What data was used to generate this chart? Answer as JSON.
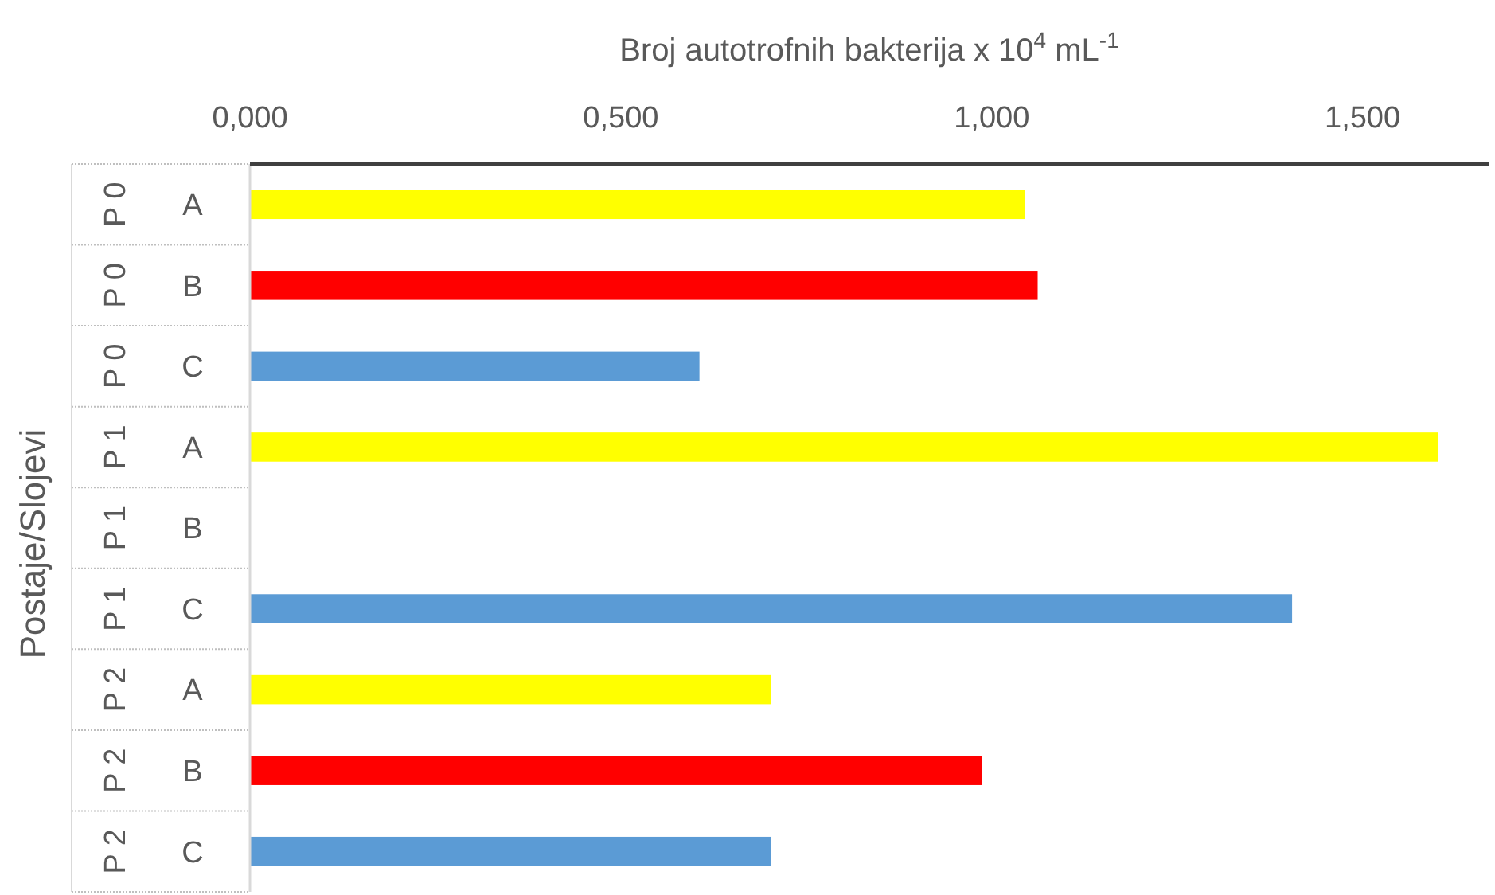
{
  "chart_data": {
    "type": "bar",
    "orientation": "horizontal",
    "xlabel": "Broj autotrofnih bakterija x 10$^{4}$ mL$^{-1}$",
    "ylabel": "Postaje/Slojevi",
    "categories": [
      "A",
      "B",
      "C",
      "A",
      "B",
      "C",
      "A",
      "B",
      "C"
    ],
    "values": [
      1.045,
      1.062,
      0.606,
      1.602,
      null,
      1.405,
      0.702,
      0.987,
      0.702
    ],
    "colors": [
      "#ffff00",
      "#ff0000",
      "#5b9bd5",
      "#ffff00",
      null,
      "#5b9bd5",
      "#ffff00",
      "#ff0000",
      "#5b9bd5"
    ],
    "xlim": [
      0,
      1.67
    ],
    "xticks": [
      {
        "value": 0,
        "label": "0,000"
      },
      {
        "value": 0.5,
        "label": "0,500"
      },
      {
        "value": 1,
        "label": "1,000"
      },
      {
        "value": 1.5,
        "label": "1,500"
      }
    ],
    "annotations": [
      "P 0",
      "P 0",
      "P 0",
      "P 1",
      "P 1",
      "P 1",
      "P 2",
      "P 2",
      "P 2"
    ],
    "grid": false
  }
}
